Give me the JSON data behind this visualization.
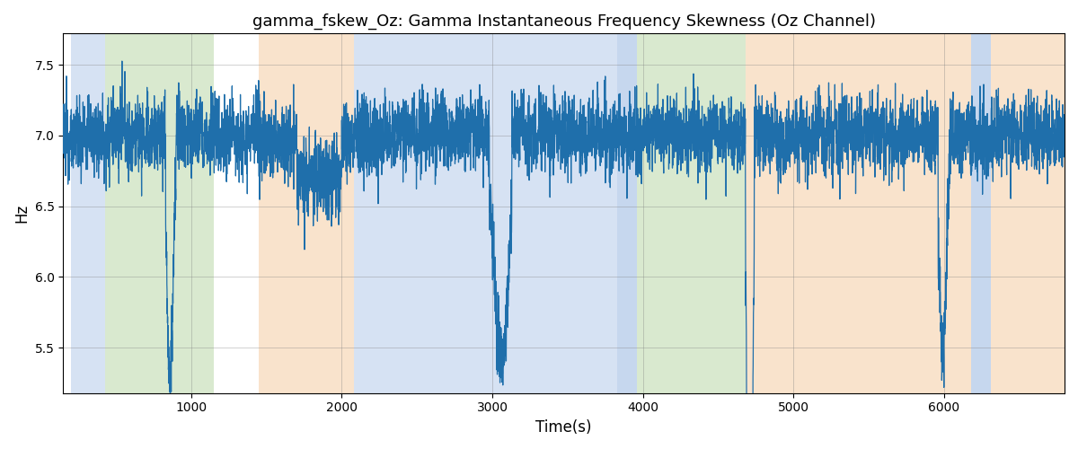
{
  "title": "gamma_fskew_Oz: Gamma Instantaneous Frequency Skewness (Oz Channel)",
  "xlabel": "Time(s)",
  "ylabel": "Hz",
  "xlim": [
    150,
    6800
  ],
  "ylim": [
    5.18,
    7.72
  ],
  "yticks": [
    5.5,
    6.0,
    6.5,
    7.0,
    7.5
  ],
  "xticks": [
    1000,
    2000,
    3000,
    4000,
    5000,
    6000
  ],
  "line_color": "#1f6fab",
  "line_width": 0.9,
  "bg_regions": [
    {
      "start": 200,
      "end": 430,
      "color": "#aec6e8",
      "alpha": 0.5
    },
    {
      "start": 430,
      "end": 1150,
      "color": "#b5d5a0",
      "alpha": 0.5
    },
    {
      "start": 1450,
      "end": 2080,
      "color": "#f5c99a",
      "alpha": 0.5
    },
    {
      "start": 2080,
      "end": 3830,
      "color": "#aec6e8",
      "alpha": 0.5
    },
    {
      "start": 3830,
      "end": 3960,
      "color": "#aec6e8",
      "alpha": 0.7
    },
    {
      "start": 3960,
      "end": 4680,
      "color": "#b5d5a0",
      "alpha": 0.5
    },
    {
      "start": 4680,
      "end": 4830,
      "color": "#f5c99a",
      "alpha": 0.5
    },
    {
      "start": 4830,
      "end": 6180,
      "color": "#f5c99a",
      "alpha": 0.5
    },
    {
      "start": 6180,
      "end": 6310,
      "color": "#aec6e8",
      "alpha": 0.7
    },
    {
      "start": 6310,
      "end": 6850,
      "color": "#f5c99a",
      "alpha": 0.5
    }
  ],
  "seed": 12345,
  "base_freq": 7.0,
  "noise_std": 0.13,
  "sample_rate": 1.0
}
